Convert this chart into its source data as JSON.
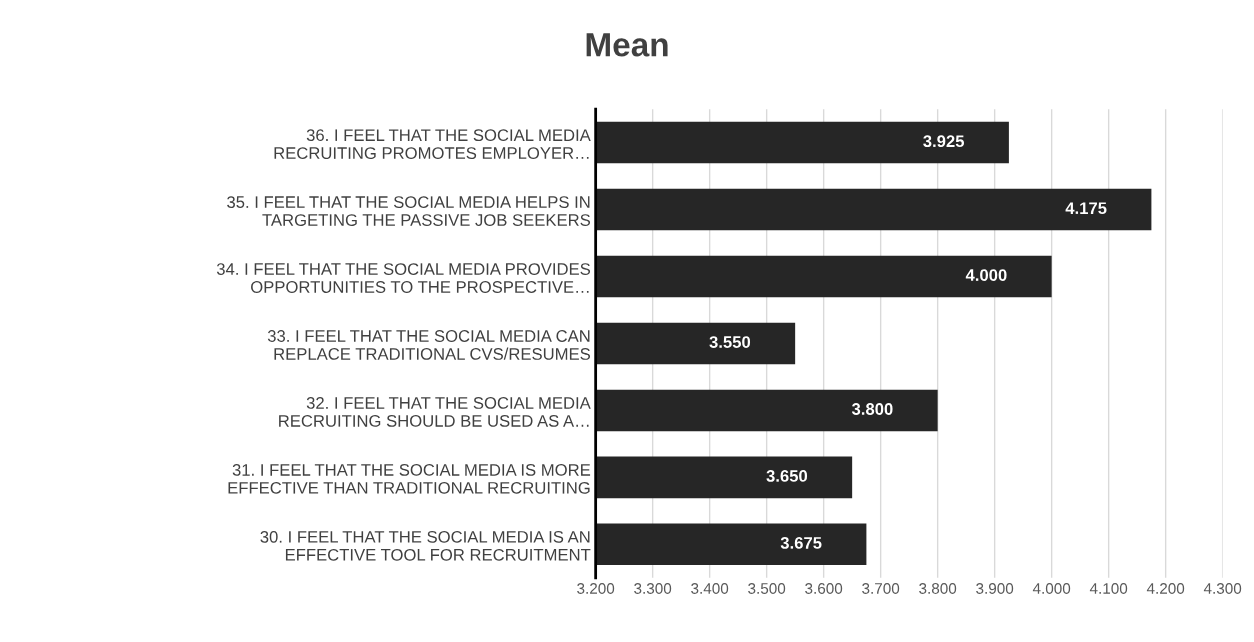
{
  "chart_data": {
    "type": "bar",
    "orientation": "horizontal",
    "title": "Mean",
    "categories": [
      "36. I FEEL THAT THE SOCIAL MEDIA\nRECRUITING PROMOTES EMPLOYER…",
      "35. I FEEL THAT THE SOCIAL MEDIA HELPS IN\nTARGETING THE PASSIVE JOB SEEKERS",
      "34. I FEEL THAT THE SOCIAL MEDIA PROVIDES\nOPPORTUNITIES TO THE PROSPECTIVE…",
      "33. I FEEL THAT THE SOCIAL MEDIA CAN\nREPLACE TRADITIONAL CVS/RESUMES",
      "32. I FEEL THAT THE SOCIAL MEDIA\nRECRUITING SHOULD BE USED AS A…",
      "31. I FEEL THAT THE SOCIAL MEDIA IS MORE\nEFFECTIVE THAN TRADITIONAL RECRUITING",
      "30. I FEEL THAT THE SOCIAL MEDIA IS AN\nEFFECTIVE TOOL FOR RECRUITMENT"
    ],
    "values": [
      3.925,
      4.175,
      4.0,
      3.55,
      3.8,
      3.65,
      3.675
    ],
    "value_labels": [
      "3.925",
      "4.175",
      "4.000",
      "3.550",
      "3.800",
      "3.650",
      "3.675"
    ],
    "color": "#262626",
    "xlim": [
      3.2,
      4.3
    ],
    "xticks": [
      {
        "value": 3.2,
        "label": "3.200"
      },
      {
        "value": 3.3,
        "label": "3.300"
      },
      {
        "value": 3.4,
        "label": "3.400"
      },
      {
        "value": 3.5,
        "label": "3.500"
      },
      {
        "value": 3.6,
        "label": "3.600"
      },
      {
        "value": 3.7,
        "label": "3.700"
      },
      {
        "value": 3.8,
        "label": "3.800"
      },
      {
        "value": 3.9,
        "label": "3.900"
      },
      {
        "value": 4.0,
        "label": "4.000"
      },
      {
        "value": 4.1,
        "label": "4.100"
      },
      {
        "value": 4.2,
        "label": "4.200"
      },
      {
        "value": 4.3,
        "label": "4.300"
      }
    ],
    "grid": "x"
  }
}
